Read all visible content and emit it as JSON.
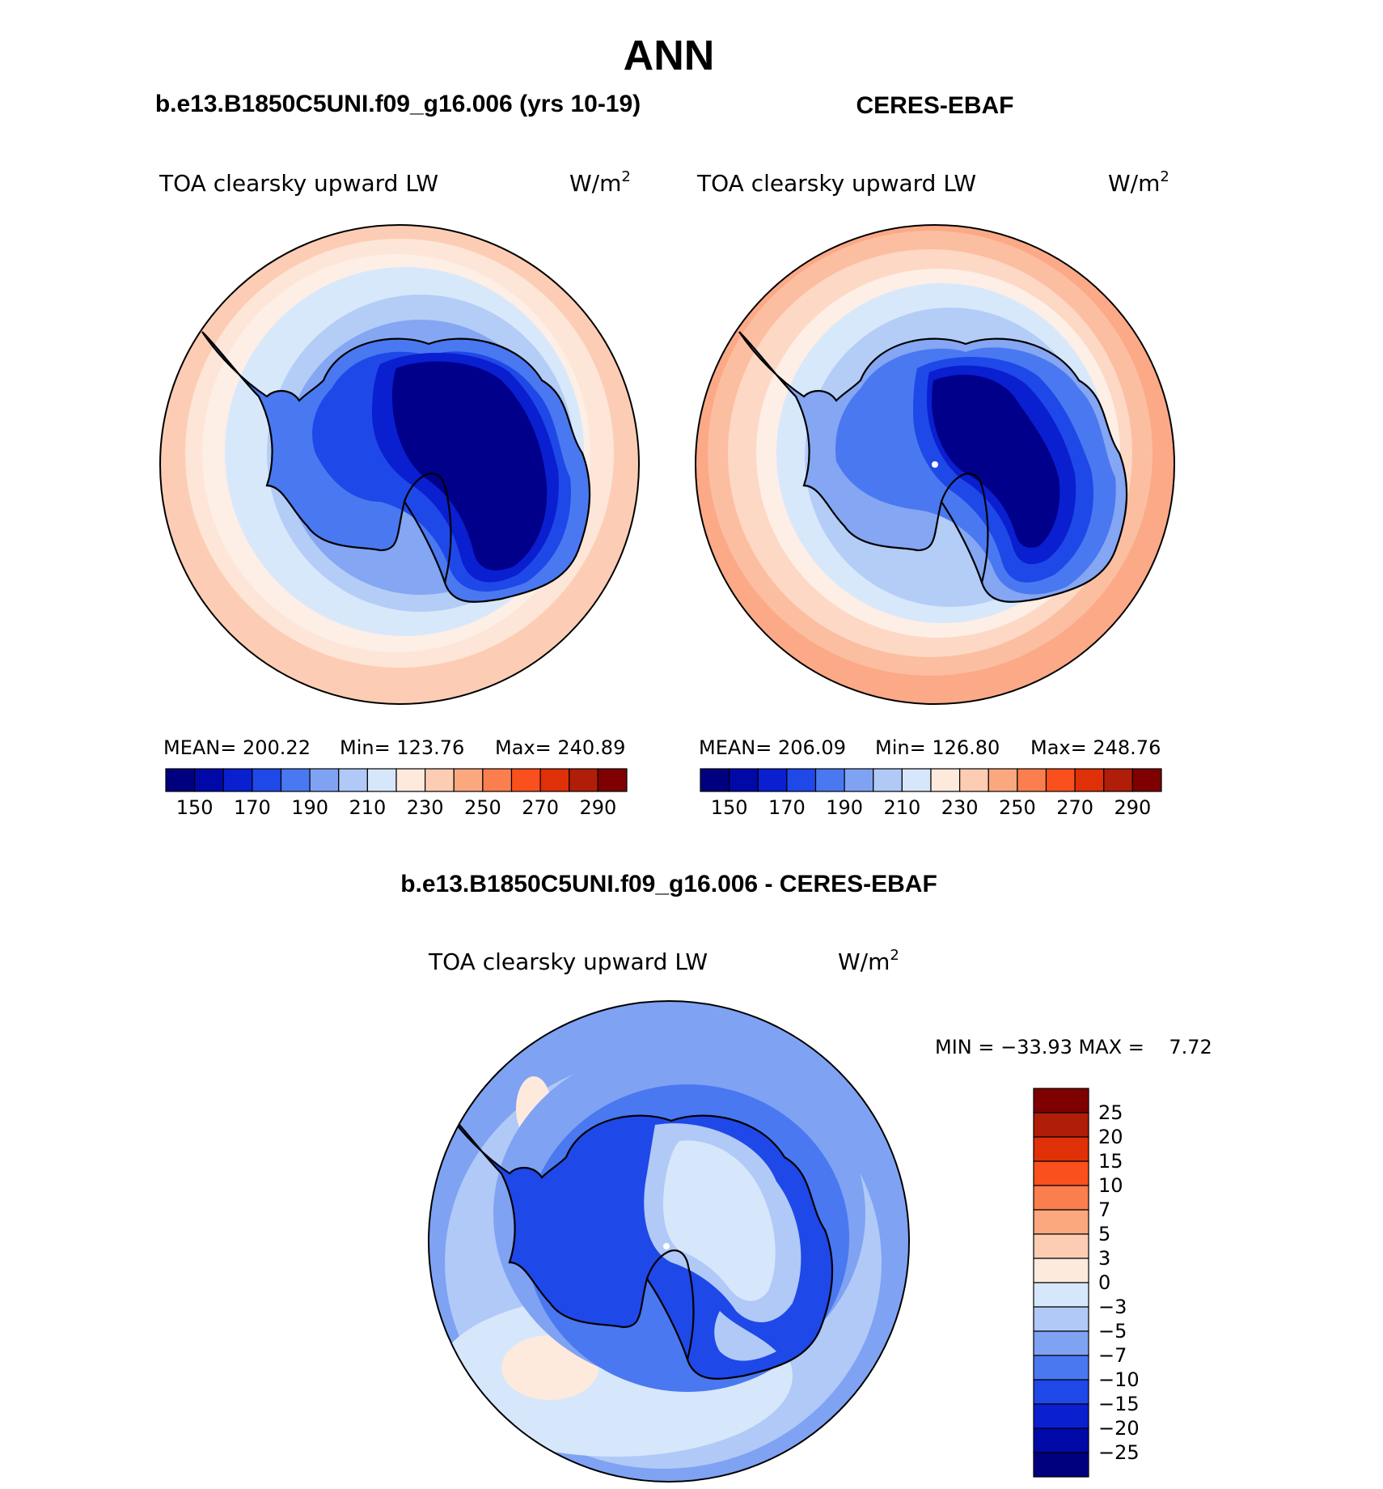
{
  "title": "ANN",
  "panels": [
    {
      "heading": "b.e13.B1850C5UNI.f09_g16.006 (yrs 10-19)",
      "variable": "TOA clearsky upward LW",
      "units": "W/m",
      "units_exp": "2",
      "stats": {
        "mean": "MEAN= 200.22",
        "min": "Min= 123.76",
        "max": "Max= 240.89"
      }
    },
    {
      "heading": "CERES-EBAF",
      "variable": "TOA clearsky upward LW",
      "units": "W/m",
      "units_exp": "2",
      "stats": {
        "mean": "MEAN= 206.09",
        "min": "Min= 126.80",
        "max": "Max= 248.76"
      }
    },
    {
      "heading": "b.e13.B1850C5UNI.f09_g16.006 - CERES-EBAF",
      "variable": "TOA clearsky upward LW",
      "units": "W/m",
      "units_exp": "2",
      "stats": {
        "minmax": "MIN = −33.93 MAX =    7.72"
      }
    }
  ],
  "colorbar_abs": {
    "labels": [
      "150",
      "170",
      "190",
      "210",
      "230",
      "250",
      "270",
      "290"
    ],
    "colors": [
      "#00007f",
      "#0009a8",
      "#0a1fd0",
      "#1f48e8",
      "#4a78f0",
      "#7fa2f3",
      "#b0c9f7",
      "#d6e7fb",
      "#fdeadc",
      "#fcccb3",
      "#fba87f",
      "#fb7e4e",
      "#f9501e",
      "#df3008",
      "#b01d08",
      "#7f0000"
    ]
  },
  "colorbar_diff": {
    "labels": [
      "25",
      "20",
      "15",
      "10",
      "7",
      "5",
      "3",
      "0",
      "−3",
      "−5",
      "−7",
      "−10",
      "−15",
      "−20",
      "−25"
    ],
    "colors": [
      "#7f0000",
      "#b01d08",
      "#df3008",
      "#f9501e",
      "#fb7e4e",
      "#fba87f",
      "#fcccb3",
      "#fdeadc",
      "#d6e7fb",
      "#b0c9f7",
      "#7fa2f3",
      "#4a78f0",
      "#1f48e8",
      "#0a1fd0",
      "#0009a8",
      "#00007f"
    ]
  }
}
